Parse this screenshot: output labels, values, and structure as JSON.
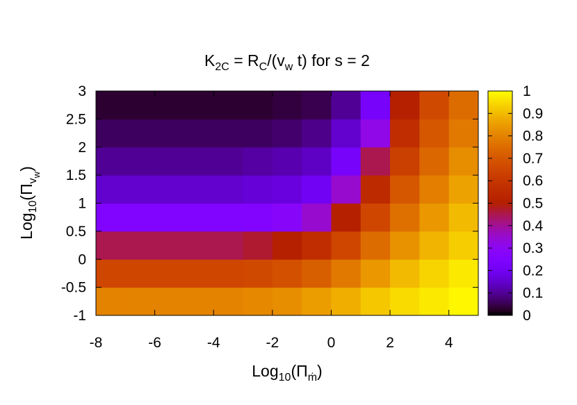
{
  "chart_data": {
    "type": "heatmap",
    "title": [
      {
        "text": "K"
      },
      {
        "text": "2C",
        "level": 1
      },
      {
        "text": " = R"
      },
      {
        "text": "C",
        "level": 1
      },
      {
        "text": "/(v"
      },
      {
        "text": "w",
        "level": 1
      },
      {
        "text": " t)   for s = 2"
      }
    ],
    "xlabel": [
      {
        "text": "Log"
      },
      {
        "text": "10",
        "level": 1
      },
      {
        "text": "(Π"
      },
      {
        "text": "ṁ",
        "level": 1
      },
      {
        "text": ")"
      }
    ],
    "ylabel": [
      {
        "text": "Log"
      },
      {
        "text": "10",
        "level": 1
      },
      {
        "text": "(Π"
      },
      {
        "text": "v",
        "level": 1
      },
      {
        "text": "w",
        "level": 2
      },
      {
        "text": ")"
      }
    ],
    "xbins": [
      -8,
      -7,
      -6,
      -5,
      -4,
      -3,
      -2,
      -1,
      0,
      1,
      2,
      3,
      4,
      5
    ],
    "ybins": [
      -1,
      -0.5,
      0,
      0.5,
      1,
      1.5,
      2,
      2.5,
      3
    ],
    "values": [
      [
        0.8,
        0.8,
        0.8,
        0.8,
        0.8,
        0.81,
        0.82,
        0.85,
        0.88,
        0.92,
        0.95,
        0.97,
        0.99
      ],
      [
        0.65,
        0.65,
        0.65,
        0.65,
        0.65,
        0.66,
        0.68,
        0.72,
        0.78,
        0.84,
        0.9,
        0.94,
        0.97
      ],
      [
        0.45,
        0.45,
        0.45,
        0.45,
        0.45,
        0.47,
        0.5,
        0.56,
        0.65,
        0.75,
        0.83,
        0.89,
        0.93
      ],
      [
        0.25,
        0.25,
        0.25,
        0.25,
        0.25,
        0.26,
        0.28,
        0.35,
        0.5,
        0.65,
        0.76,
        0.84,
        0.9
      ],
      [
        0.15,
        0.15,
        0.15,
        0.15,
        0.15,
        0.16,
        0.17,
        0.2,
        0.35,
        0.55,
        0.7,
        0.79,
        0.86
      ],
      [
        0.1,
        0.1,
        0.1,
        0.1,
        0.1,
        0.11,
        0.12,
        0.14,
        0.22,
        0.45,
        0.63,
        0.74,
        0.82
      ],
      [
        0.06,
        0.06,
        0.06,
        0.06,
        0.06,
        0.06,
        0.07,
        0.09,
        0.15,
        0.32,
        0.56,
        0.7,
        0.78
      ],
      [
        0.03,
        0.03,
        0.03,
        0.03,
        0.03,
        0.03,
        0.04,
        0.05,
        0.1,
        0.22,
        0.5,
        0.66,
        0.75
      ]
    ],
    "xlim": [
      -8,
      5
    ],
    "ylim": [
      -1,
      3
    ],
    "cblim": [
      0,
      1
    ],
    "xticks": [
      -8,
      -6,
      -4,
      -2,
      0,
      2,
      4
    ],
    "yticks": [
      -1,
      -0.5,
      0,
      0.5,
      1,
      1.5,
      2,
      2.5,
      3
    ],
    "cbticks": [
      0,
      0.1,
      0.2,
      0.3,
      0.4,
      0.5,
      0.6,
      0.7,
      0.8,
      0.9,
      1
    ],
    "palette": "rgbformulae 7,5,15"
  }
}
